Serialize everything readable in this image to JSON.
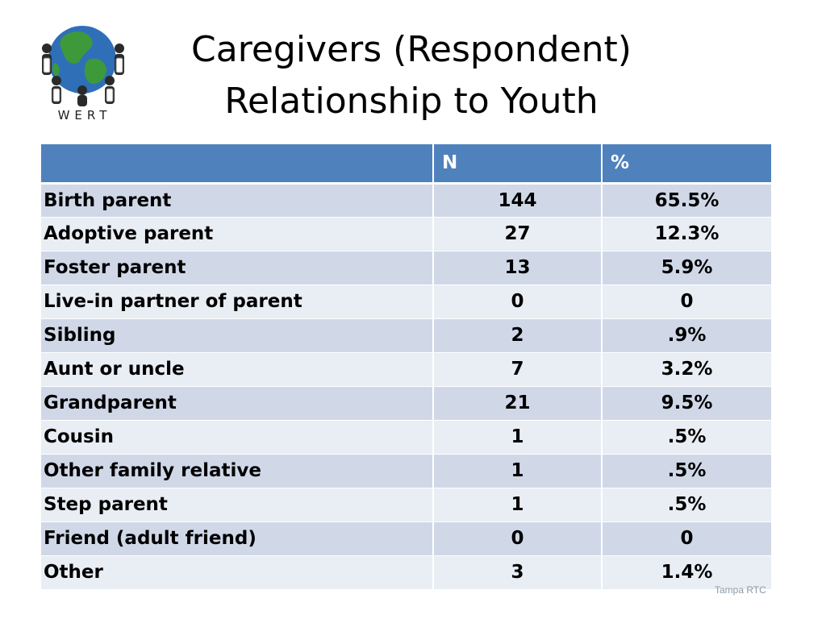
{
  "logo": {
    "icon": "globe-people-icon",
    "wordmark": "WERT"
  },
  "title": {
    "line1": "Caregivers (Respondent)",
    "line2": "Relationship to Youth"
  },
  "table": {
    "headers": [
      "",
      "N",
      "%"
    ],
    "rows": [
      {
        "label": "Birth parent",
        "n": "144",
        "pct": "65.5%"
      },
      {
        "label": "Adoptive parent",
        "n": "27",
        "pct": "12.3%"
      },
      {
        "label": "Foster parent",
        "n": "13",
        "pct": "5.9%"
      },
      {
        "label": "Live-in partner of parent",
        "n": "0",
        "pct": "0"
      },
      {
        "label": "Sibling",
        "n": "2",
        "pct": ".9%"
      },
      {
        "label": "Aunt or uncle",
        "n": "7",
        "pct": "3.2%"
      },
      {
        "label": "Grandparent",
        "n": "21",
        "pct": "9.5%"
      },
      {
        "label": "Cousin",
        "n": "1",
        "pct": ".5%"
      },
      {
        "label": "Other family relative",
        "n": "1",
        "pct": ".5%"
      },
      {
        "label": "Step parent",
        "n": "1",
        "pct": ".5%"
      },
      {
        "label": "Friend (adult friend)",
        "n": "0",
        "pct": "0"
      },
      {
        "label": "Other",
        "n": "3",
        "pct": "1.4%"
      }
    ]
  },
  "footer": {
    "text": "Tampa RTC"
  },
  "colors": {
    "header": "#4f81bd",
    "row_odd": "#d0d8e8",
    "row_even": "#e9edf4"
  }
}
